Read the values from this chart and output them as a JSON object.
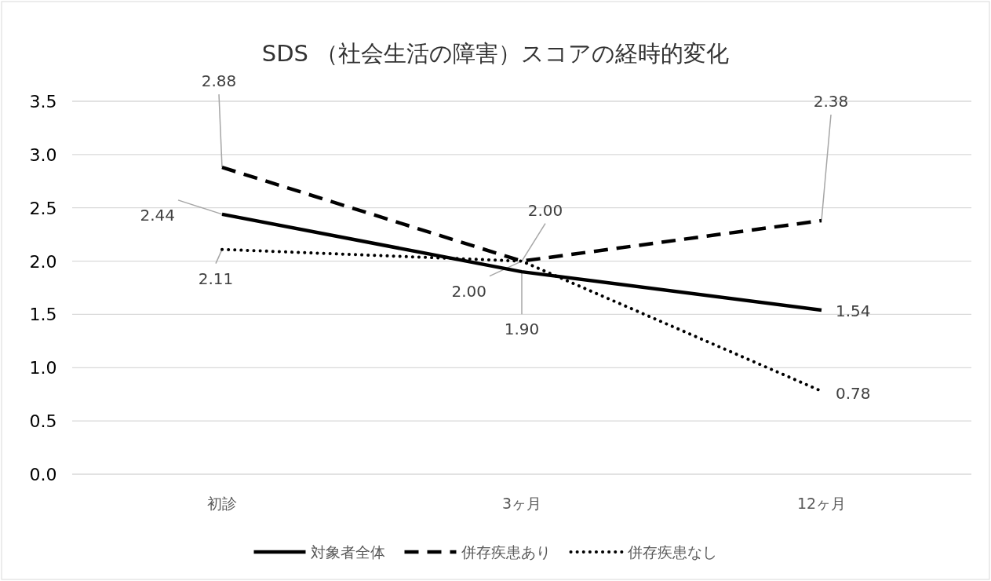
{
  "chart_data": {
    "type": "line",
    "title": "SDS （社会生活の障害）スコアの経時的変化",
    "categories": [
      "初診",
      "3ヶ月",
      "12ヶ月"
    ],
    "series": [
      {
        "name": "対象者全体",
        "color": "#000000",
        "line_style": "solid",
        "values": [
          2.44,
          1.9,
          1.54
        ],
        "value_labels": [
          "2.44",
          "1.90",
          "1.54"
        ]
      },
      {
        "name": "併存疾患あり",
        "color": "#000000",
        "line_style": "dashed",
        "values": [
          2.88,
          2.0,
          2.38
        ],
        "value_labels": [
          "2.88",
          "2.00",
          "2.38"
        ]
      },
      {
        "name": "併存疾患なし",
        "color": "#000000",
        "line_style": "dotted",
        "values": [
          2.11,
          2.0,
          0.78
        ],
        "value_labels": [
          "2.11",
          "2.00",
          "0.78"
        ]
      }
    ],
    "ylim": [
      0,
      3.5
    ],
    "yticks": [
      {
        "value": 0,
        "label": "0.0"
      },
      {
        "value": 0.5,
        "label": "0.5"
      },
      {
        "value": 1,
        "label": "1.0"
      },
      {
        "value": 1.5,
        "label": "1.5"
      },
      {
        "value": 2,
        "label": "2.0"
      },
      {
        "value": 2.5,
        "label": "2.5"
      },
      {
        "value": 3,
        "label": "3.0"
      },
      {
        "value": 3.5,
        "label": "3.5"
      }
    ],
    "grid": "y",
    "legend": "bottom",
    "marker": "none"
  }
}
